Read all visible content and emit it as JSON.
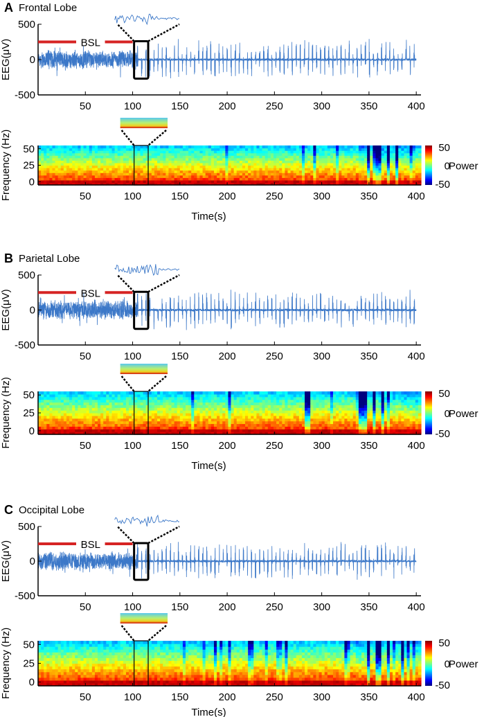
{
  "figure": {
    "panels": [
      {
        "letter": "A",
        "title": "Frontal Lobe"
      },
      {
        "letter": "B",
        "title": "Parietal Lobe"
      },
      {
        "letter": "C",
        "title": "Occipital Lobe"
      }
    ],
    "baseline_label": "BSL",
    "eeg_ylabel": "EEG(μV)",
    "spec_ylabel": "Frequency (Hz)",
    "xlabel": "Time(s)",
    "colorbar_label": "Power",
    "colormap": [
      "#00007f",
      "#0000ff",
      "#007fff",
      "#00ffff",
      "#7fff7f",
      "#ffff00",
      "#ff7f00",
      "#ff0000",
      "#7f0000"
    ],
    "trace_color": "#3c78c8",
    "bsl_color": "#d62424"
  },
  "chart_data": [
    {
      "type": "line",
      "panel": "A",
      "title": "Frontal Lobe",
      "ylabel": "EEG(μV)",
      "xlim": [
        0,
        405
      ],
      "ylim": [
        -500,
        500
      ],
      "xticks": [
        50,
        100,
        150,
        200,
        250,
        300,
        350,
        400
      ],
      "yticks": [
        500,
        0,
        -500
      ],
      "baseline_segment": [
        0,
        100
      ],
      "baseline_label": "BSL",
      "highlight_window": [
        103,
        115
      ],
      "description_of_series": "EEG trace: continuous low-amplitude activity (~±150 μV) during baseline 0-100 s, then periodic spike bursts reaching about ±300 μV from ~110 s to 400 s"
    },
    {
      "type": "heatmap",
      "panel": "A",
      "ylabel": "Frequency (Hz)",
      "xlabel": "Time(s)",
      "xlim": [
        0,
        405
      ],
      "ylim": [
        -5,
        55
      ],
      "xticks": [
        50,
        100,
        150,
        200,
        250,
        300,
        350,
        400
      ],
      "yticks": [
        50,
        25,
        0
      ],
      "colorbar": {
        "label": "Power",
        "ticks": [
          50,
          0,
          -50
        ]
      },
      "highlight_window": [
        103,
        115
      ]
    },
    {
      "type": "line",
      "panel": "B",
      "title": "Parietal Lobe",
      "ylabel": "EEG(μV)",
      "xlim": [
        0,
        405
      ],
      "ylim": [
        -500,
        500
      ],
      "xticks": [
        50,
        100,
        150,
        200,
        250,
        300,
        350,
        400
      ],
      "yticks": [
        500,
        0,
        -500
      ],
      "baseline_segment": [
        0,
        100
      ],
      "baseline_label": "BSL",
      "highlight_window": [
        103,
        115
      ]
    },
    {
      "type": "heatmap",
      "panel": "B",
      "ylabel": "Frequency (Hz)",
      "xlabel": "Time(s)",
      "xlim": [
        0,
        405
      ],
      "ylim": [
        -5,
        55
      ],
      "xticks": [
        50,
        100,
        150,
        200,
        250,
        300,
        350,
        400
      ],
      "yticks": [
        50,
        25,
        0
      ],
      "colorbar": {
        "label": "Power",
        "ticks": [
          50,
          0,
          -50
        ]
      },
      "highlight_window": [
        103,
        115
      ]
    },
    {
      "type": "line",
      "panel": "C",
      "title": "Occipital Lobe",
      "ylabel": "EEG(μV)",
      "xlim": [
        0,
        405
      ],
      "ylim": [
        -500,
        500
      ],
      "xticks": [
        50,
        100,
        150,
        200,
        250,
        300,
        350,
        400
      ],
      "yticks": [
        500,
        0,
        -500
      ],
      "baseline_segment": [
        0,
        100
      ],
      "baseline_label": "BSL",
      "highlight_window": [
        103,
        115
      ]
    },
    {
      "type": "heatmap",
      "panel": "C",
      "ylabel": "Frequency (Hz)",
      "xlabel": "Time(s)",
      "xlim": [
        0,
        405
      ],
      "ylim": [
        -5,
        55
      ],
      "xticks": [
        50,
        100,
        150,
        200,
        250,
        300,
        350,
        400
      ],
      "yticks": [
        50,
        25,
        0
      ],
      "colorbar": {
        "label": "Power",
        "ticks": [
          50,
          0,
          -50
        ]
      },
      "highlight_window": [
        103,
        115
      ]
    }
  ]
}
